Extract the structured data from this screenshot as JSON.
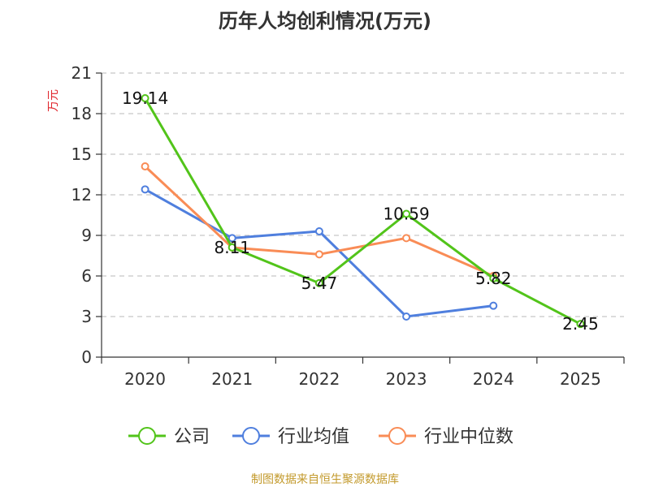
{
  "chart_data": {
    "type": "line",
    "title": "历年人均创利情况(万元)",
    "ylabel": "万元",
    "xlabel": "",
    "categories": [
      "2020",
      "2021",
      "2022",
      "2023",
      "2024",
      "2025"
    ],
    "ylim": [
      0,
      21
    ],
    "yticks": [
      0,
      3,
      6,
      9,
      12,
      15,
      18,
      21
    ],
    "grid": true,
    "legend_position": "bottom",
    "series": [
      {
        "name": "公司",
        "color": "#52c41a",
        "values": [
          19.14,
          8.11,
          5.47,
          10.59,
          5.82,
          2.45
        ],
        "labels": [
          "19.14",
          "8.11",
          "5.47",
          "10.59",
          "5.82",
          "2.45"
        ]
      },
      {
        "name": "行业均值",
        "color": "#4f7fde",
        "values": [
          12.4,
          8.8,
          9.3,
          3.0,
          3.8,
          null
        ]
      },
      {
        "name": "行业中位数",
        "color": "#f98c56",
        "values": [
          14.1,
          8.1,
          7.6,
          8.8,
          6.0,
          null
        ]
      }
    ]
  },
  "source_note": "制图数据来自恒生聚源数据库"
}
